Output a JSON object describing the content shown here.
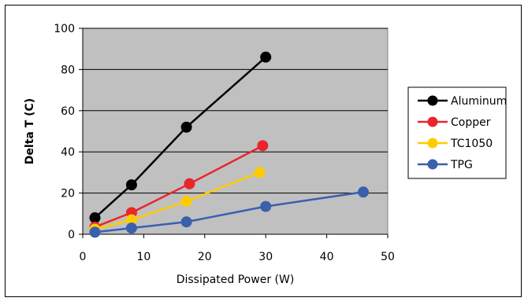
{
  "chart_data": {
    "type": "line",
    "title": "",
    "xlabel": "Dissipated Power (W)",
    "ylabel": "Delta T (C)",
    "xlim": [
      0,
      50
    ],
    "ylim": [
      0,
      100
    ],
    "xticks": [
      0,
      10,
      20,
      30,
      40,
      50
    ],
    "yticks": [
      0,
      20,
      40,
      60,
      80,
      100
    ],
    "grid": "horizontal",
    "plot_background": "#c0c0c0",
    "legend_position": "right",
    "series": [
      {
        "name": "Aluminum",
        "color": "#000000",
        "x": [
          2,
          8,
          17,
          30
        ],
        "y": [
          8,
          24,
          52,
          86
        ]
      },
      {
        "name": "Copper",
        "color": "#e8262b",
        "x": [
          2,
          8,
          17.5,
          29.5
        ],
        "y": [
          3.5,
          10.5,
          24.5,
          43
        ]
      },
      {
        "name": "TC1050",
        "color": "#ffcc00",
        "x": [
          2,
          8,
          17,
          29
        ],
        "y": [
          2.5,
          7,
          16,
          30
        ]
      },
      {
        "name": "TPG",
        "color": "#3a5fad",
        "x": [
          2,
          8,
          17,
          30,
          46
        ],
        "y": [
          1,
          3,
          6,
          13.5,
          20.5
        ]
      }
    ]
  }
}
